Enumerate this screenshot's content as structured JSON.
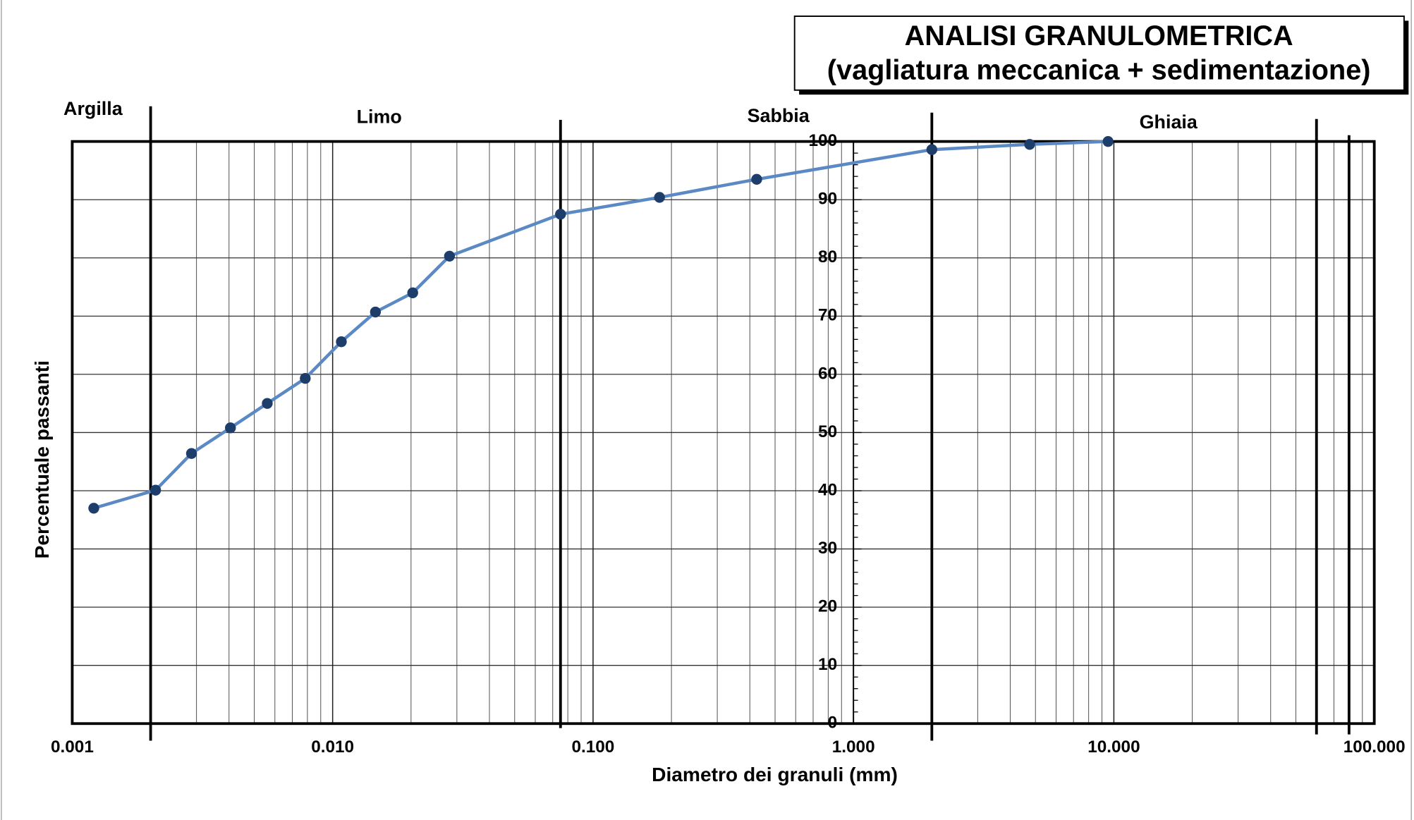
{
  "chart_data": {
    "type": "line",
    "title": "ANALISI  GRANULOMETRICA",
    "subtitle": "(vagliatura meccanica + sedimentazione)",
    "x_label": "Diametro dei granuli (mm)",
    "y_label": "Percentuale passanti",
    "zone_labels": [
      "Argilla",
      "Limo",
      "Sabbia",
      "Ghiaia"
    ],
    "boundaries": [
      0.002,
      0.075,
      2,
      60,
      80
    ],
    "x": [
      0.00121,
      0.00209,
      0.00287,
      0.00405,
      0.00561,
      0.00785,
      0.0108,
      0.0146,
      0.0203,
      0.0281,
      0.075,
      0.18,
      0.425,
      2,
      4.75,
      9.5
    ],
    "values": [
      37.0,
      40.1,
      46.4,
      50.8,
      55.0,
      59.3,
      65.6,
      70.7,
      74.0,
      80.3,
      87.5,
      90.4,
      93.5,
      98.6,
      99.5,
      100
    ],
    "color": "#5a89c4",
    "marker_color": "#1d3d6b",
    "log_x": true,
    "grid": true,
    "xlim": [
      0.001,
      100
    ],
    "xticks": [
      {
        "value": 0.001,
        "label": "0.001"
      },
      {
        "value": 0.01,
        "label": "0.010"
      },
      {
        "value": 0.1,
        "label": "0.100"
      },
      {
        "value": 1,
        "label": "1.000"
      },
      {
        "value": 10,
        "label": "10.000"
      },
      {
        "value": 100,
        "label": "100.000"
      }
    ],
    "ylim": [
      0,
      100
    ],
    "yticks": [
      0,
      10,
      20,
      30,
      40,
      50,
      60,
      70,
      80,
      90,
      100
    ]
  }
}
